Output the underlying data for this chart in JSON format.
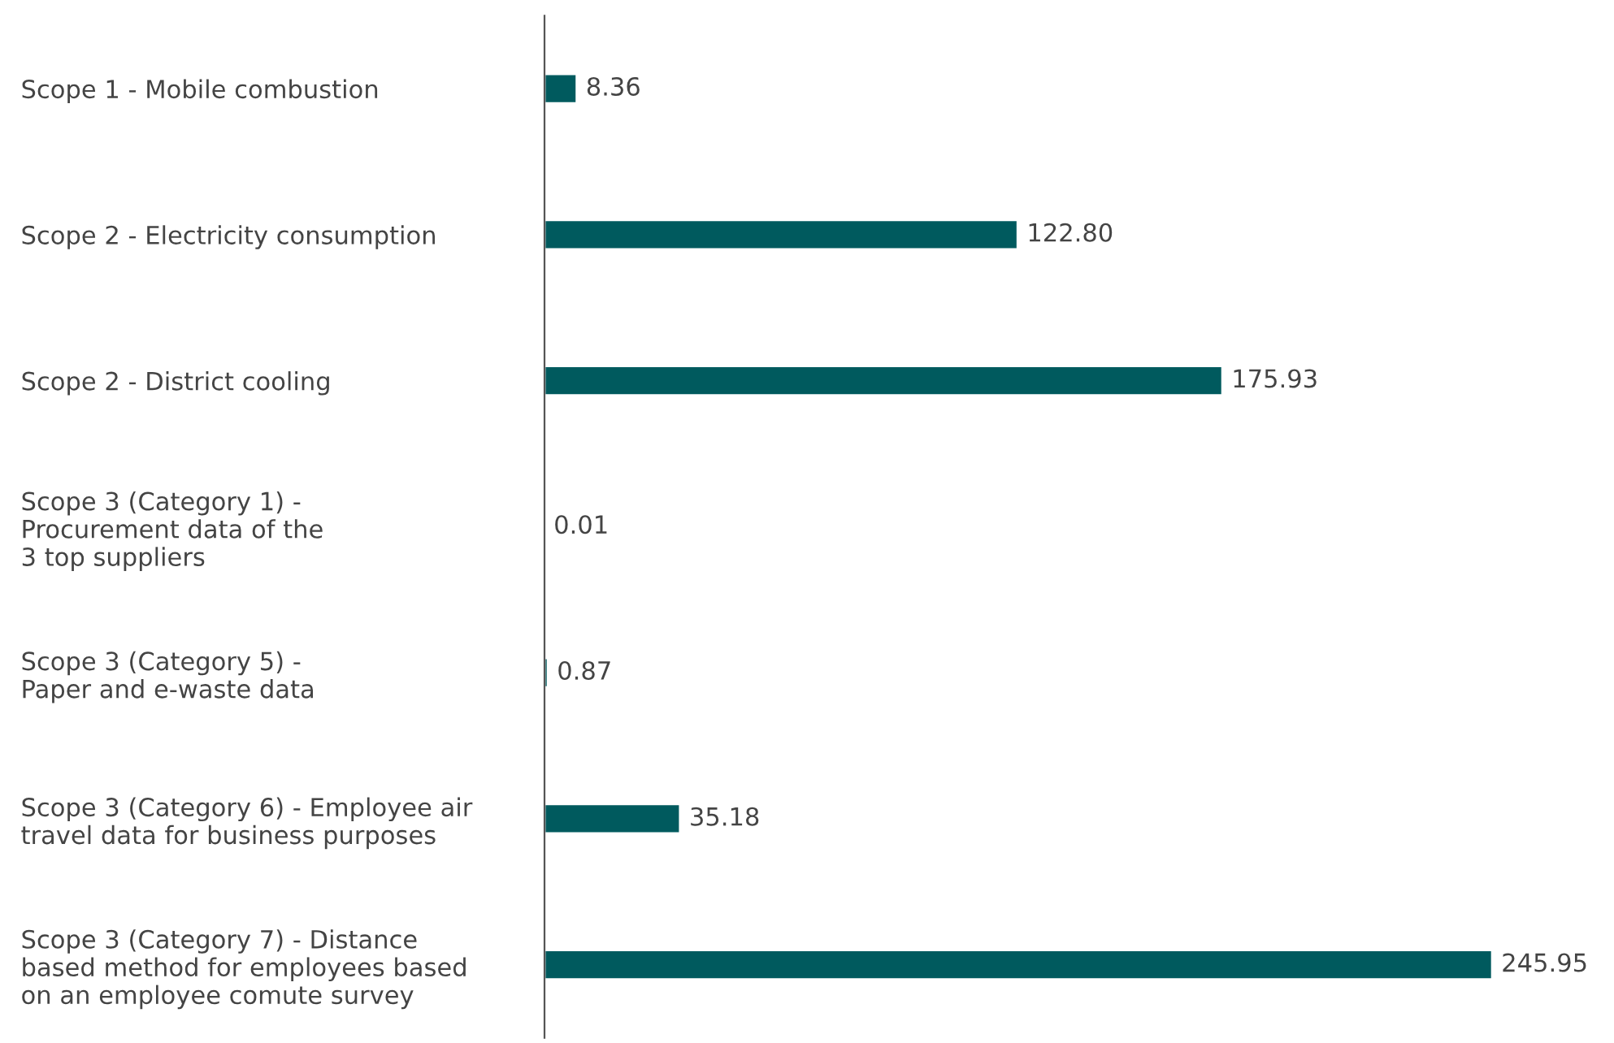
{
  "chart_data": {
    "type": "bar",
    "orientation": "horizontal",
    "categories": [
      "Scope 1 - Mobile combustion",
      "Scope 2 - Electricity consumption",
      "Scope 2 - District cooling",
      "Scope 3 (Category 1) -\nProcurement data of the\n3 top suppliers",
      "Scope 3 (Category 5) -\nPaper and e-waste data",
      "Scope 3 (Category 6) - Employee air\ntravel data for business purposes",
      "Scope 3 (Category 7) - Distance\nbased method for employees based\non an employee comute survey"
    ],
    "values": [
      8.36,
      122.8,
      175.93,
      0.01,
      0.87,
      35.18,
      245.95
    ],
    "value_labels": [
      "8.36",
      "122.80",
      "175.93",
      "0.01",
      "0.87",
      "35.18",
      "245.95"
    ],
    "color": "#005a5e",
    "grid": false,
    "legend": false
  }
}
